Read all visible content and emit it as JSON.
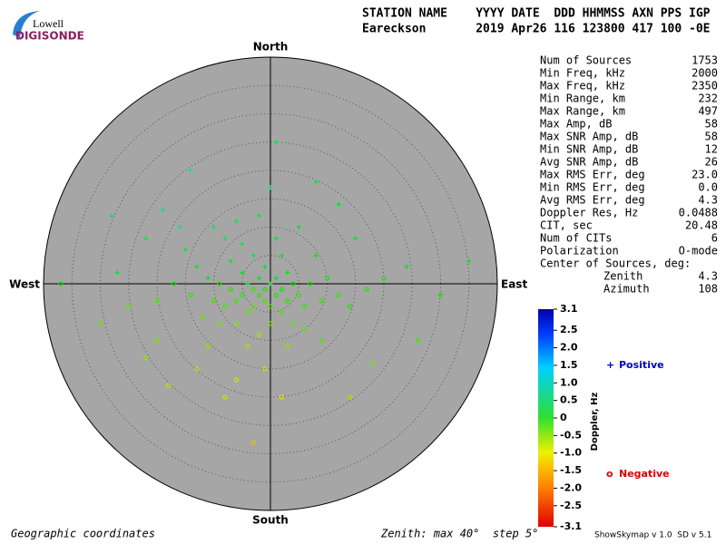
{
  "logo": {
    "top": "Lowell",
    "bottom": "DIGISONDE"
  },
  "header": {
    "labels": "STATION NAME    YYYY DATE  DDD HHMMSS AXN PPS IGP",
    "values": "Eareckson       2019 Apr26 116 123800 417 100 -0E"
  },
  "stats": {
    "rows": [
      [
        "Num of Sources",
        "1753"
      ],
      [
        "Min Freq, kHz",
        "2000"
      ],
      [
        "Max Freq, kHz",
        "2350"
      ],
      [
        "Min Range, km",
        "232"
      ],
      [
        "Max Range, km",
        "497"
      ],
      [
        "Max Amp, dB",
        "58"
      ],
      [
        "Max SNR Amp, dB",
        "58"
      ],
      [
        "Min SNR Amp, dB",
        "12"
      ],
      [
        "Avg SNR Amp, dB",
        "26"
      ],
      [
        "Max RMS Err, deg",
        "23.0"
      ],
      [
        "Min RMS Err, deg",
        "0.0"
      ],
      [
        "Avg RMS Err, deg",
        "4.3"
      ],
      [
        "Doppler Res, Hz",
        "0.0488"
      ],
      [
        "CIT, sec",
        "20.48"
      ],
      [
        "Num of CITs",
        "6"
      ],
      [
        "Polarization",
        "O-mode"
      ]
    ],
    "center_title": "Center of Sources, deg:",
    "center_rows": [
      [
        "Zenith",
        "4.3"
      ],
      [
        "Azimuth",
        "108"
      ]
    ]
  },
  "footer": {
    "left": "Geographic coordinates",
    "middle": "Zenith: max 40°  step 5°",
    "right": "ShowSkymap v 1.0  SD v 5.1"
  },
  "chart_data": {
    "type": "scatter",
    "directions": {
      "north": "North",
      "south": "South",
      "east": "East",
      "west": "West"
    },
    "xlim": [
      -40,
      40
    ],
    "ylim": [
      -40,
      40
    ],
    "zenith_ticks": [
      5,
      10,
      15,
      20,
      25,
      30,
      35,
      40
    ],
    "x": [
      -1,
      0,
      -2,
      -3,
      1,
      -4,
      -1,
      2,
      -5,
      0,
      3,
      -2,
      -6,
      4,
      -3,
      1,
      -7,
      2,
      -4,
      5,
      -8,
      6,
      -1,
      -5,
      3,
      -9,
      7,
      0,
      -6,
      4,
      -10,
      9,
      -3,
      2,
      -7,
      -11,
      10,
      -2,
      6,
      -9,
      -5,
      1,
      -8,
      -12,
      12,
      -4,
      3,
      -13,
      8,
      -6,
      -2,
      -14,
      14,
      -10,
      5,
      -15,
      -11,
      9,
      -1,
      -17,
      17,
      -16,
      -20,
      20,
      -6,
      2,
      -13,
      15,
      0,
      -19,
      -25,
      24,
      -22,
      -3,
      12,
      -14,
      1,
      -27,
      30,
      -30,
      -22,
      18,
      -8,
      14,
      -20,
      8,
      -18,
      26,
      -28,
      -37,
      35
    ],
    "y": [
      -1,
      0,
      -2,
      -1,
      -2,
      0,
      -3,
      -1,
      -2,
      -4,
      -3,
      1,
      -3,
      0,
      -4,
      1,
      -1,
      -5,
      -5,
      -2,
      -4,
      -4,
      3,
      2,
      2,
      0,
      0,
      -7,
      -7,
      -7,
      -3,
      -3,
      5,
      5,
      4,
      1,
      1,
      -9,
      -8,
      -7,
      7,
      8,
      8,
      -6,
      -2,
      -11,
      -11,
      3,
      5,
      11,
      12,
      -2,
      -4,
      10,
      10,
      6,
      -11,
      -10,
      -15,
      0,
      -1,
      10,
      -3,
      1,
      -17,
      -20,
      -15,
      8,
      17,
      13,
      -4,
      3,
      8,
      -28,
      14,
      20,
      25,
      2,
      -2,
      -7,
      -13,
      -14,
      -20,
      -20,
      -10,
      18,
      -18,
      -10,
      12,
      0,
      4
    ],
    "doppler": [
      -0.2,
      0.1,
      -0.3,
      -0.4,
      -0.2,
      0.2,
      -0.5,
      -0.1,
      -0.3,
      -0.6,
      -0.2,
      0.1,
      -0.4,
      -0.1,
      -0.7,
      0.2,
      -0.2,
      -0.5,
      -0.6,
      -0.3,
      -0.5,
      -0.4,
      0.3,
      0.2,
      0.1,
      -0.2,
      -0.2,
      -0.8,
      -0.9,
      -0.6,
      -0.4,
      -0.3,
      0.4,
      0.2,
      0.3,
      0.1,
      -0.1,
      -1.0,
      -0.7,
      -0.8,
      0.5,
      0.3,
      0.6,
      -0.7,
      -0.3,
      -1.1,
      -0.9,
      0.2,
      0.1,
      0.6,
      0.5,
      -0.3,
      -0.2,
      0.7,
      0.2,
      0.4,
      -0.9,
      -0.5,
      -1.3,
      -0.1,
      -0.2,
      0.8,
      -0.5,
      -0.1,
      -1.4,
      -1.6,
      -1.2,
      0.2,
      0.6,
      0.9,
      -0.6,
      0.1,
      0.4,
      -1.8,
      0.3,
      1.0,
      0.5,
      0.3,
      -0.2,
      -0.6,
      -0.9,
      -0.8,
      -1.3,
      -1.1,
      -0.8,
      0.4,
      -1.2,
      -0.4,
      0.7,
      -0.1,
      0.2
    ],
    "colorbar": {
      "label": "Doppler, Hz",
      "lim": [
        -3.1,
        3.1
      ],
      "ticks": [
        3.1,
        2.5,
        {
          "value": 2,
          "label": "2.0"
        },
        1.5,
        {
          "value": 1,
          "label": "1.0"
        },
        0.5,
        0,
        -0.5,
        {
          "value": -1,
          "label": "-1.0"
        },
        -1.5,
        {
          "value": -2,
          "label": "-2.0"
        },
        -2.5,
        -3.1
      ]
    },
    "legend": [
      {
        "symbol": "+",
        "label": "Positive",
        "color": "#0000cc"
      },
      {
        "symbol": "o",
        "label": "Negative",
        "color": "#dd0000"
      }
    ]
  }
}
